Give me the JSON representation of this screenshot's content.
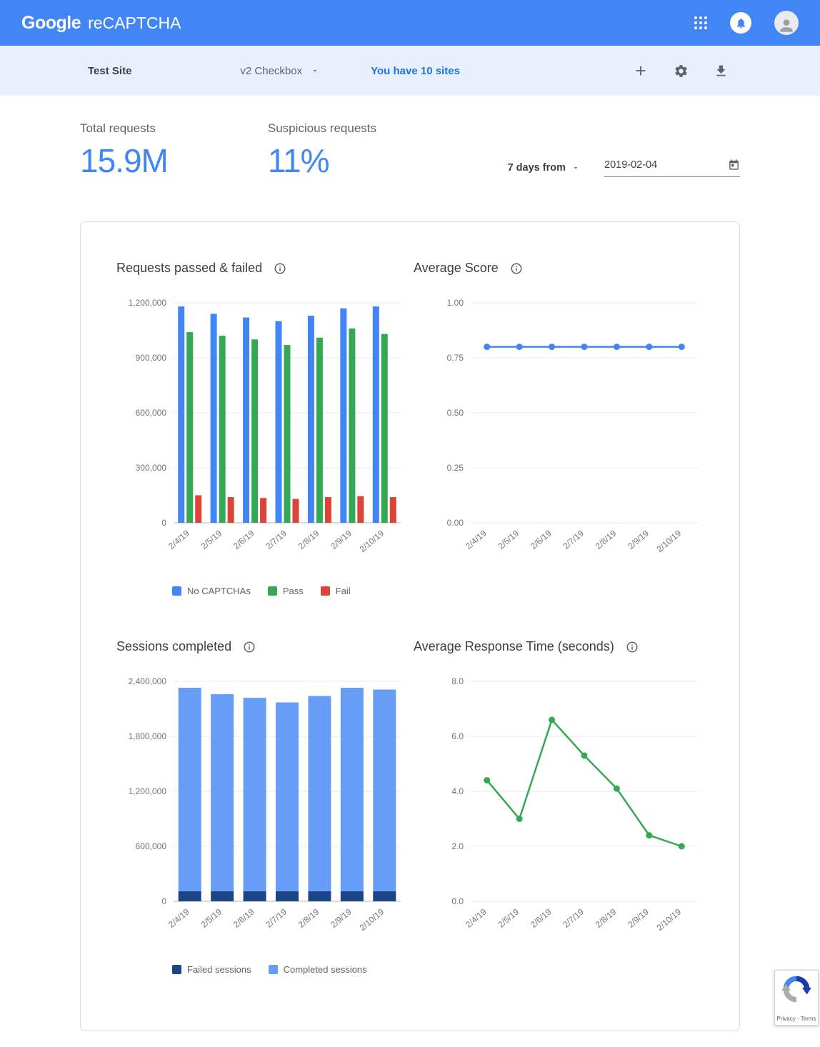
{
  "header": {
    "logo_google": "Google",
    "logo_product": "reCAPTCHA"
  },
  "toolbar": {
    "site_name": "Test Site",
    "site_type": "v2 Checkbox",
    "sites_link": "You have 10 sites"
  },
  "stats": {
    "total_requests_label": "Total requests",
    "total_requests_value": "15.9M",
    "suspicious_requests_label": "Suspicious requests",
    "suspicious_requests_value": "11%",
    "range_label": "7 days from",
    "date_value": "2019-02-04"
  },
  "badge": {
    "privacy_terms": "Privacy - Terms"
  },
  "colors": {
    "header_blue": "#4285f4",
    "toolbar_bg": "#e8f0fe",
    "metric_blue": "#4285f4",
    "link_blue": "#1a73e8",
    "no_captchas_blue": "#4285f4",
    "pass_green": "#34a853",
    "fail_red": "#db4437",
    "failed_sessions_navy": "#1c4587",
    "completed_sessions_blue": "#669df6"
  },
  "chart_data": [
    {
      "type": "bar",
      "title": "Requests passed & failed",
      "categories": [
        "2/4/19",
        "2/5/19",
        "2/6/19",
        "2/7/19",
        "2/8/19",
        "2/9/19",
        "2/10/19"
      ],
      "series": [
        {
          "name": "No CAPTCHAs",
          "color": "#4285f4",
          "values": [
            1180000,
            1140000,
            1120000,
            1100000,
            1130000,
            1170000,
            1180000
          ]
        },
        {
          "name": "Pass",
          "color": "#34a853",
          "values": [
            1040000,
            1020000,
            1000000,
            970000,
            1010000,
            1060000,
            1030000
          ]
        },
        {
          "name": "Fail",
          "color": "#db4437",
          "values": [
            150000,
            140000,
            135000,
            130000,
            140000,
            145000,
            140000
          ]
        }
      ],
      "ylim": [
        0,
        1200000
      ],
      "yticks": [
        0,
        300000,
        600000,
        900000,
        1200000
      ],
      "yticklabels": [
        "0",
        "300,000",
        "600,000",
        "900,000",
        "1,200,000"
      ],
      "show_legend": true
    },
    {
      "type": "line",
      "title": "Average Score",
      "categories": [
        "2/4/19",
        "2/5/19",
        "2/6/19",
        "2/7/19",
        "2/8/19",
        "2/9/19",
        "2/10/19"
      ],
      "series": [
        {
          "name": "Average score",
          "color": "#4285f4",
          "values": [
            0.8,
            0.8,
            0.8,
            0.8,
            0.8,
            0.8,
            0.8
          ]
        }
      ],
      "ylim": [
        0,
        1
      ],
      "yticks": [
        0,
        0.25,
        0.5,
        0.75,
        1
      ],
      "yticklabels": [
        "0.00",
        "0.25",
        "0.50",
        "0.75",
        "1.00"
      ],
      "show_legend": false
    },
    {
      "type": "stacked-bar",
      "title": "Sessions completed",
      "categories": [
        "2/4/19",
        "2/5/19",
        "2/6/19",
        "2/7/19",
        "2/8/19",
        "2/9/19",
        "2/10/19"
      ],
      "series": [
        {
          "name": "Failed sessions",
          "color": "#1c4587",
          "values": [
            110000,
            110000,
            110000,
            110000,
            110000,
            110000,
            110000
          ]
        },
        {
          "name": "Completed sessions",
          "color": "#669df6",
          "values": [
            2220000,
            2150000,
            2110000,
            2060000,
            2130000,
            2220000,
            2200000
          ]
        }
      ],
      "ylim": [
        0,
        2400000
      ],
      "yticks": [
        0,
        600000,
        1200000,
        1800000,
        2400000
      ],
      "yticklabels": [
        "0",
        "600,000",
        "1,200,000",
        "1,800,000",
        "2,400,000"
      ],
      "show_legend": true
    },
    {
      "type": "line",
      "title": "Average Response Time (seconds)",
      "categories": [
        "2/4/19",
        "2/5/19",
        "2/6/19",
        "2/7/19",
        "2/8/19",
        "2/9/19",
        "2/10/19"
      ],
      "series": [
        {
          "name": "Average response time",
          "color": "#34a853",
          "values": [
            4.4,
            3.0,
            6.6,
            5.3,
            4.1,
            2.4,
            2.0
          ]
        }
      ],
      "ylim": [
        0,
        8
      ],
      "yticks": [
        0,
        2,
        4,
        6,
        8
      ],
      "yticklabels": [
        "0.0",
        "2.0",
        "4.0",
        "6.0",
        "8.0"
      ],
      "show_legend": false
    }
  ]
}
